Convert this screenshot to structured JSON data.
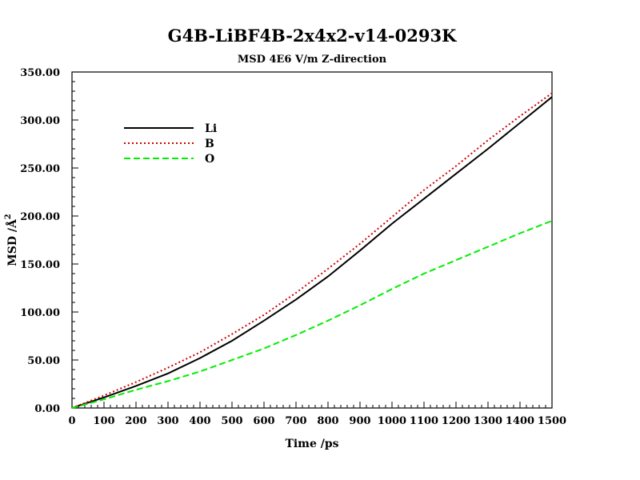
{
  "chart_data": {
    "type": "line",
    "title": "G4B-LiBF4B-2x4x2-v14-0293K",
    "subtitle": "MSD  4E6 V/m Z-direction",
    "xlabel": "Time /ps",
    "ylabel_main": "MSD /Å",
    "ylabel_sup": "2",
    "xlim": [
      0,
      1500
    ],
    "ylim": [
      0,
      350
    ],
    "x_ticks": [
      0,
      100,
      200,
      300,
      400,
      500,
      600,
      700,
      800,
      900,
      1000,
      1100,
      1200,
      1300,
      1400,
      1500
    ],
    "y_ticks": [
      0,
      50,
      100,
      150,
      200,
      250,
      300,
      350
    ],
    "x_tick_labels": [
      "0",
      "100",
      "200",
      "300",
      "400",
      "500",
      "600",
      "700",
      "800",
      "900",
      "1000",
      "1100",
      "1200",
      "1300",
      "1400",
      "1500"
    ],
    "y_tick_labels": [
      "0.00",
      "50.00",
      "100.00",
      "150.00",
      "200.00",
      "250.00",
      "300.00",
      "350.00"
    ],
    "grid": false,
    "legend_position": "top-left",
    "x": [
      0,
      100,
      200,
      300,
      400,
      500,
      600,
      700,
      800,
      900,
      1000,
      1100,
      1200,
      1300,
      1400,
      1500
    ],
    "series": [
      {
        "name": "Li",
        "color": "#000000",
        "style": "solid",
        "values": [
          0,
          11,
          23,
          36,
          52,
          70,
          91,
          113,
          137,
          164,
          192,
          218,
          244,
          270,
          297,
          324
        ]
      },
      {
        "name": "B",
        "color": "#cc0000",
        "style": "dotted",
        "values": [
          0,
          13,
          27,
          42,
          58,
          77,
          97,
          120,
          145,
          171,
          199,
          227,
          252,
          279,
          304,
          328
        ]
      },
      {
        "name": "O",
        "color": "#00ee00",
        "style": "dashed",
        "values": [
          0,
          9,
          19,
          28,
          38,
          50,
          62,
          76,
          91,
          107,
          124,
          140,
          154,
          168,
          182,
          195
        ]
      }
    ]
  }
}
